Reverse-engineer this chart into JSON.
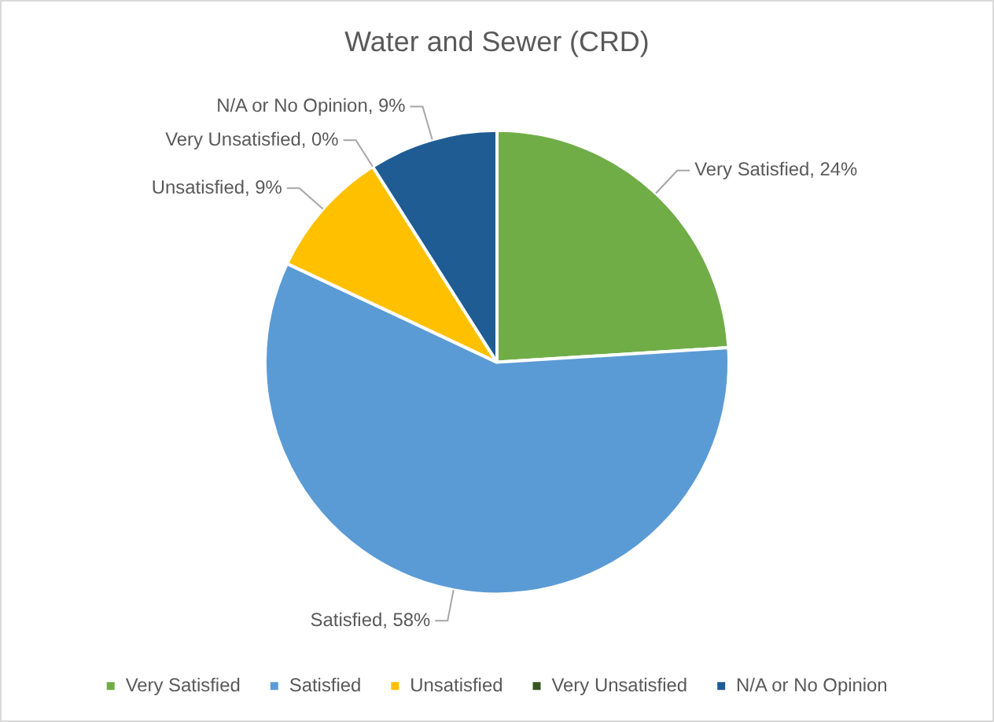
{
  "chart_data": {
    "type": "pie",
    "title": "Water and Sewer (CRD)",
    "categories": [
      "Very Satisfied",
      "Satisfied",
      "Unsatisfied",
      "Very Unsatisfied",
      "N/A or No Opinion"
    ],
    "values": [
      24,
      58,
      9,
      0,
      9
    ],
    "colors": [
      "#70ad47",
      "#5b9bd5",
      "#ffc000",
      "#375623",
      "#1f5c94"
    ],
    "value_labels": [
      "Very Satisfied, 24%",
      "Satisfied, 58%",
      "Unsatisfied, 9%",
      "Very Unsatisfied, 0%",
      "N/A or No Opinion, 9%"
    ],
    "legend": "bottom"
  }
}
